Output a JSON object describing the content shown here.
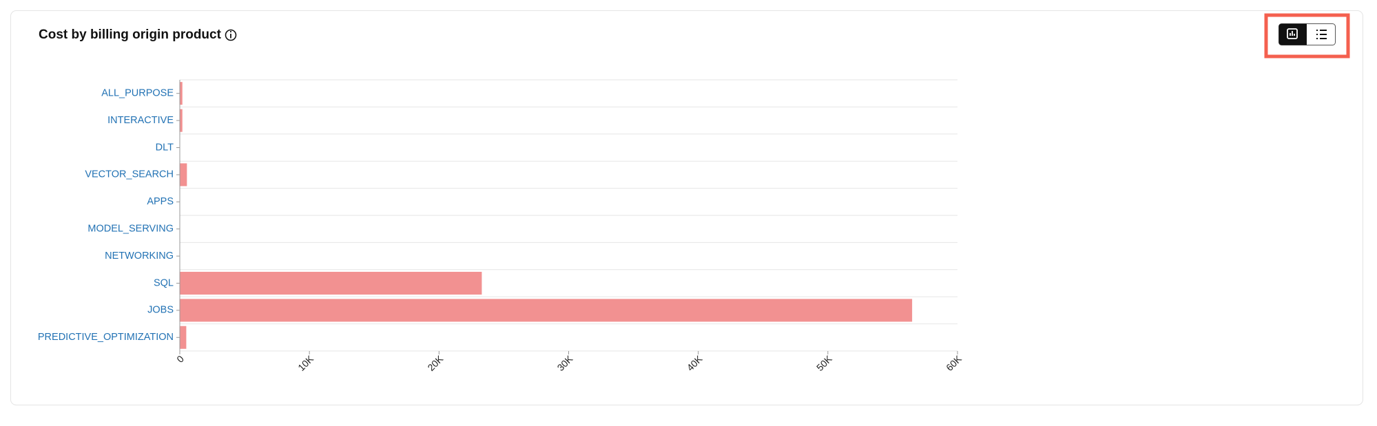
{
  "chart_data": {
    "type": "bar",
    "orientation": "horizontal",
    "title": "Cost by billing origin product",
    "categories": [
      "ALL_PURPOSE",
      "INTERACTIVE",
      "DLT",
      "VECTOR_SEARCH",
      "APPS",
      "MODEL_SERVING",
      "NETWORKING",
      "SQL",
      "JOBS",
      "PREDICTIVE_OPTIMIZATION"
    ],
    "values": [
      200,
      200,
      0,
      550,
      0,
      0,
      0,
      23300,
      56500,
      500
    ],
    "color": "#f29191",
    "xlim": [
      0,
      60000
    ],
    "xticks": [
      0,
      {
        "value": 10000,
        "label": "10K"
      },
      {
        "value": 20000,
        "label": "20K"
      },
      {
        "value": 30000,
        "label": "30K"
      },
      {
        "value": 40000,
        "label": "40K"
      },
      {
        "value": 50000,
        "label": "50K"
      },
      {
        "value": 60000,
        "label": "60K"
      }
    ],
    "grid": true
  }
}
